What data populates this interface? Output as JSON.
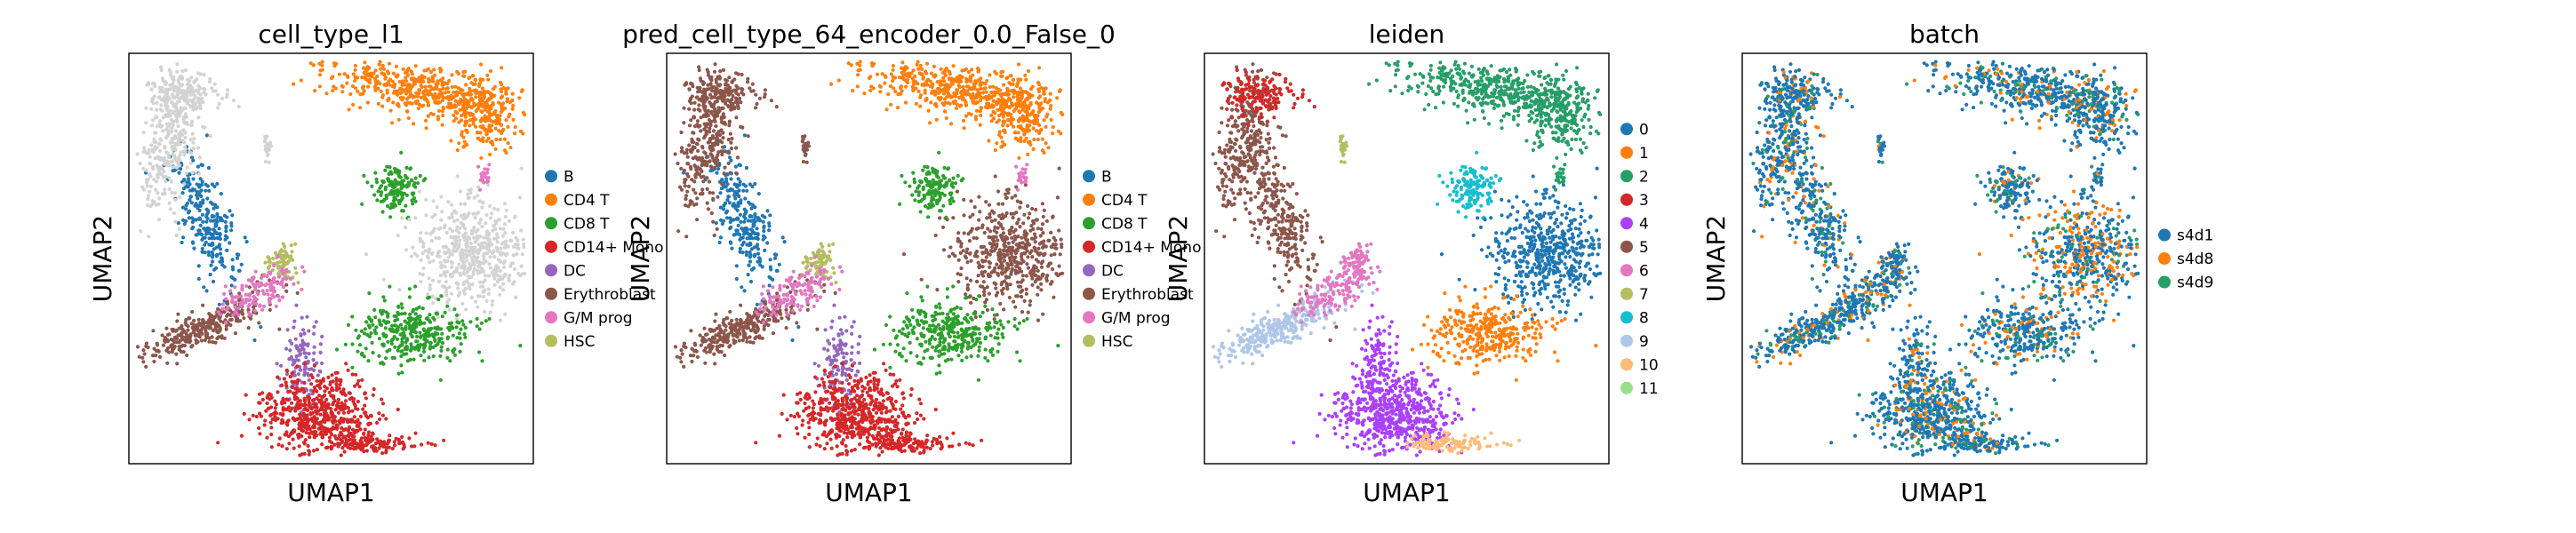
{
  "chart_data": [
    {
      "type": "scatter",
      "title": "cell_type_l1",
      "xlabel": "UMAP1",
      "ylabel": "UMAP2",
      "grid": false,
      "legend_placement": "right",
      "legend": [
        {
          "label": "B",
          "color": "#1f77b4"
        },
        {
          "label": "CD4 T",
          "color": "#ff7f0e"
        },
        {
          "label": "CD8 T",
          "color": "#2ca02c"
        },
        {
          "label": "CD14+ Mono",
          "color": "#d62728"
        },
        {
          "label": "DC",
          "color": "#9467bd"
        },
        {
          "label": "Erythroblast",
          "color": "#8c564b"
        },
        {
          "label": "G/M prog",
          "color": "#e377c2"
        },
        {
          "label": "HSC",
          "color": "#b5bd61"
        }
      ]
    },
    {
      "type": "scatter",
      "title": "pred_cell_type_64_encoder_0.0_False_0",
      "xlabel": "UMAP1",
      "ylabel": "UMAP2",
      "grid": false,
      "legend_placement": "right",
      "legend": [
        {
          "label": "B",
          "color": "#1f77b4"
        },
        {
          "label": "CD4 T",
          "color": "#ff7f0e"
        },
        {
          "label": "CD8 T",
          "color": "#2ca02c"
        },
        {
          "label": "CD14+ Mono",
          "color": "#d62728"
        },
        {
          "label": "DC",
          "color": "#9467bd"
        },
        {
          "label": "Erythroblast",
          "color": "#8c564b"
        },
        {
          "label": "G/M prog",
          "color": "#e377c2"
        },
        {
          "label": "HSC",
          "color": "#b5bd61"
        }
      ]
    },
    {
      "type": "scatter",
      "title": "leiden",
      "xlabel": "UMAP1",
      "ylabel": "UMAP2",
      "grid": false,
      "legend_placement": "right",
      "legend": [
        {
          "label": "0",
          "color": "#1f77b4"
        },
        {
          "label": "1",
          "color": "#ff7f0e"
        },
        {
          "label": "2",
          "color": "#279e68"
        },
        {
          "label": "3",
          "color": "#d62728"
        },
        {
          "label": "4",
          "color": "#aa40fc"
        },
        {
          "label": "5",
          "color": "#8c564b"
        },
        {
          "label": "6",
          "color": "#e377c2"
        },
        {
          "label": "7",
          "color": "#b5bd61"
        },
        {
          "label": "8",
          "color": "#17becf"
        },
        {
          "label": "9",
          "color": "#aec7e8"
        },
        {
          "label": "10",
          "color": "#ffbb78"
        },
        {
          "label": "11",
          "color": "#98df8a"
        }
      ]
    },
    {
      "type": "scatter",
      "title": "batch",
      "xlabel": "UMAP1",
      "ylabel": "UMAP2",
      "grid": false,
      "legend_placement": "right",
      "legend": [
        {
          "label": "s4d1",
          "color": "#1f77b4"
        },
        {
          "label": "s4d8",
          "color": "#ff7f0e"
        },
        {
          "label": "s4d9",
          "color": "#279e68"
        }
      ]
    }
  ]
}
